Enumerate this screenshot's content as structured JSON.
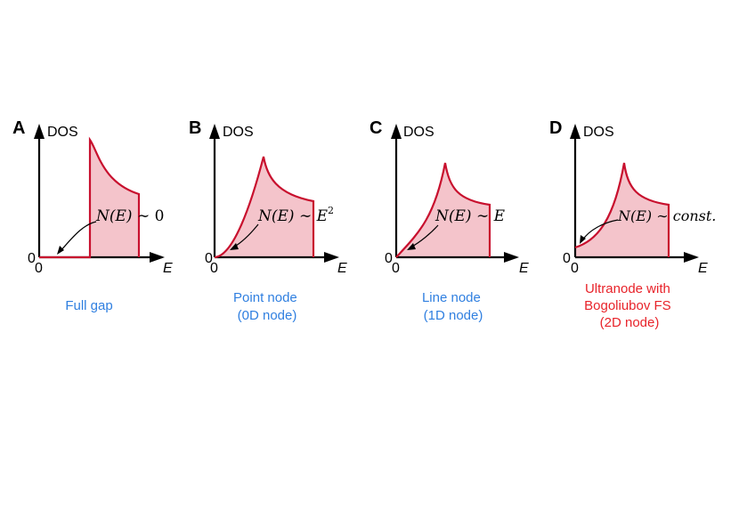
{
  "figure": {
    "axis_labels": {
      "y": "DOS",
      "x": "E",
      "origin_x": "0",
      "origin_y": "0"
    },
    "colors": {
      "curve": "#c8102e",
      "fill": "#f4c4cb",
      "axis": "#000000",
      "caption_blue": "#2f7fe0",
      "caption_red": "#e8232a"
    },
    "panels": [
      {
        "letter": "A",
        "annotation": {
          "lhs": "N(E) ∼ ",
          "rhs": "0",
          "sup": ""
        },
        "caption_lines": [
          "Full gap"
        ],
        "caption_color": "blue"
      },
      {
        "letter": "B",
        "annotation": {
          "lhs": "N(E) ∼ ",
          "rhs": "E",
          "sup": "2"
        },
        "caption_lines": [
          "Point node",
          "(0D node)"
        ],
        "caption_color": "blue"
      },
      {
        "letter": "C",
        "annotation": {
          "lhs": "N(E) ∼ ",
          "rhs": "E",
          "sup": ""
        },
        "caption_lines": [
          "Line node",
          "(1D node)"
        ],
        "caption_color": "blue"
      },
      {
        "letter": "D",
        "annotation": {
          "lhs": "N(E) ∼ ",
          "rhs": "const.",
          "sup": ""
        },
        "caption_lines": [
          "Ultranode with",
          "Bogoliubov FS",
          "(2D node)"
        ],
        "caption_color": "red"
      }
    ]
  }
}
